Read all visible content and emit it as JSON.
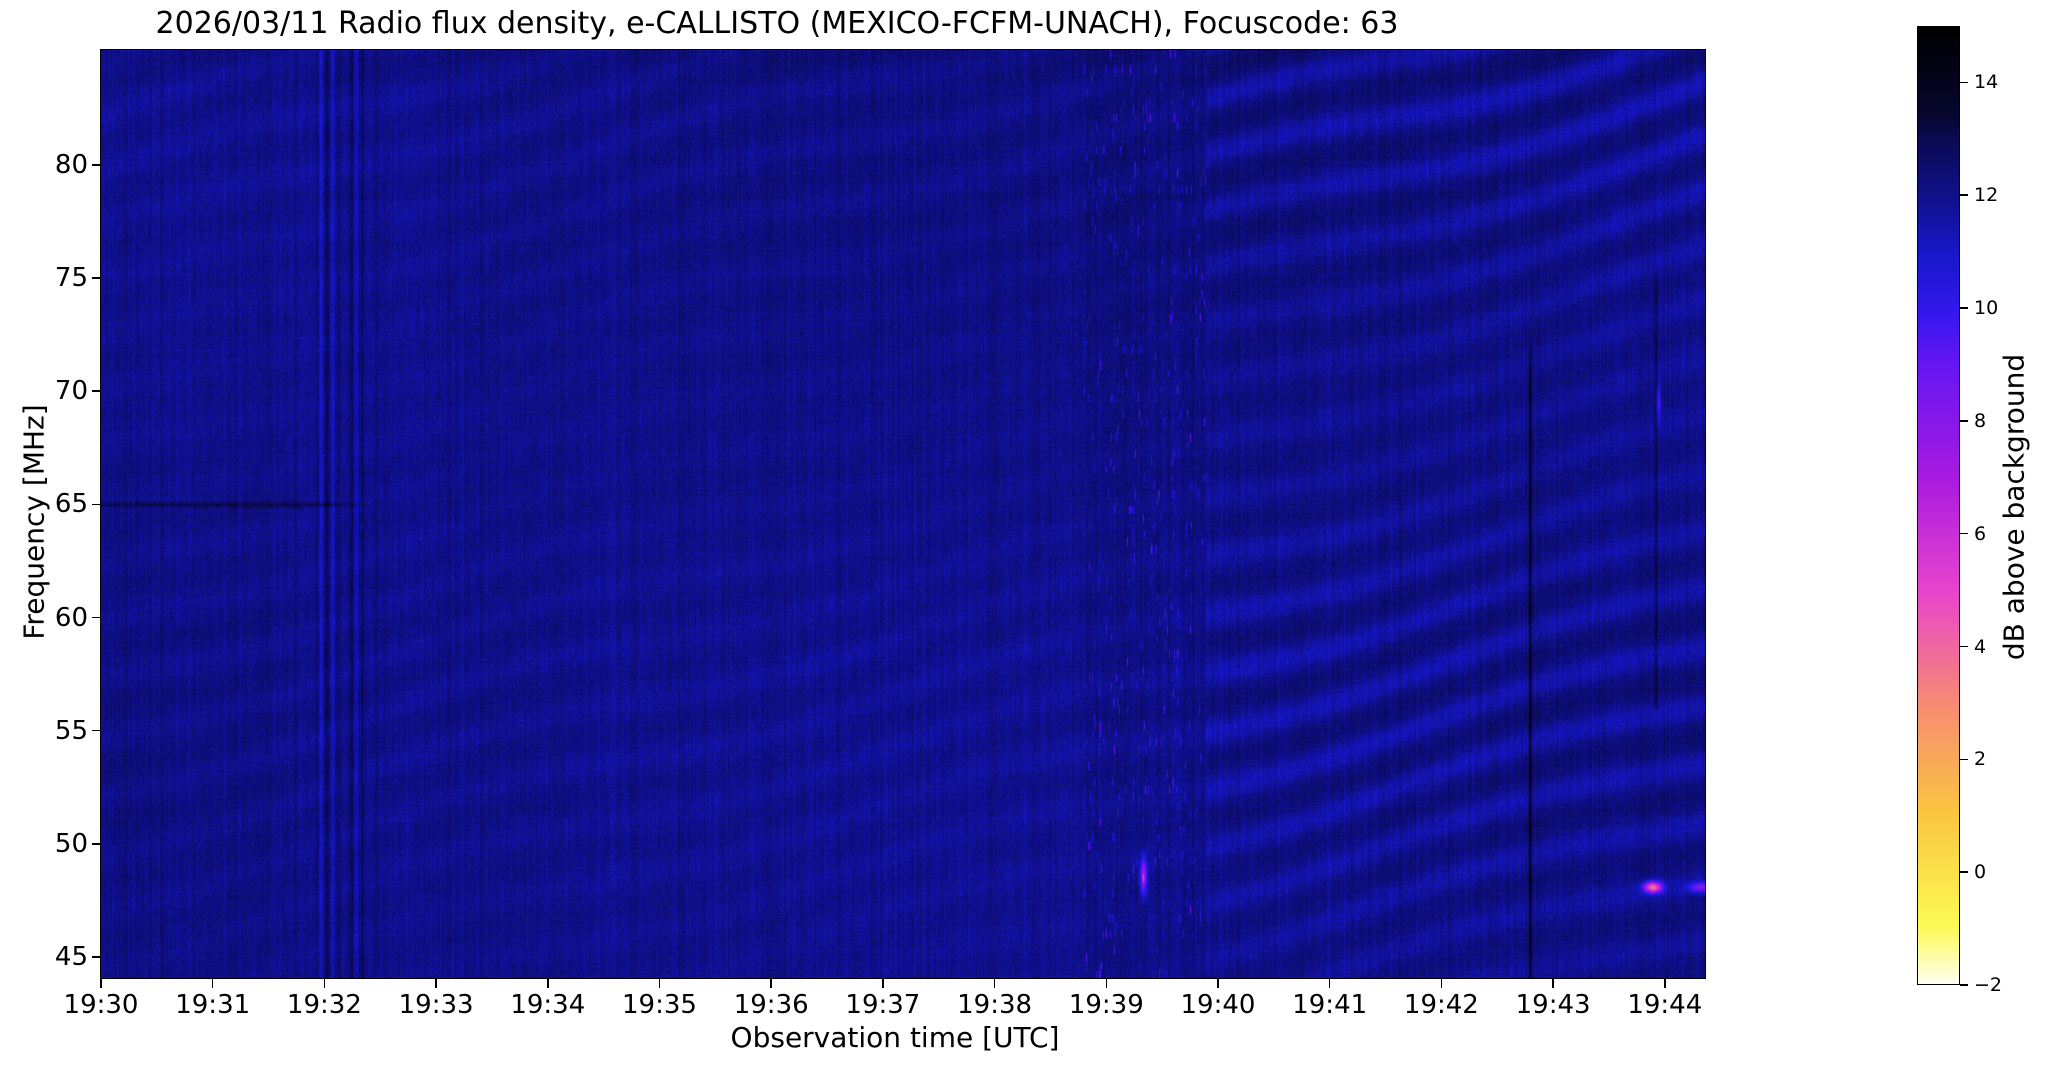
{
  "chart_data": {
    "type": "heatmap",
    "title": "2026/03/11  Radio flux density, e-CALLISTO (MEXICO-FCFM-UNACH), Focuscode: 63",
    "xlabel": "Observation time [UTC]",
    "ylabel": "Frequency [MHz]",
    "colorbar_label": "dB above background",
    "x_axis": {
      "min_minute": 0.0,
      "max_minute": 14.36,
      "start_time": "19:30",
      "end_time": "19:44:22"
    },
    "y_axis": {
      "min_mhz": 44.07,
      "max_mhz": 85.08
    },
    "x_ticks": [
      "19:30",
      "19:31",
      "19:32",
      "19:33",
      "19:34",
      "19:35",
      "19:36",
      "19:37",
      "19:38",
      "19:39",
      "19:40",
      "19:41",
      "19:42",
      "19:43",
      "19:44"
    ],
    "y_ticks": [
      45,
      50,
      55,
      60,
      65,
      70,
      75,
      80
    ],
    "colorbar_ticks": [
      {
        "value": -2,
        "label": "−2"
      },
      {
        "value": 0,
        "label": "0"
      },
      {
        "value": 2,
        "label": "2"
      },
      {
        "value": 4,
        "label": "4"
      },
      {
        "value": 6,
        "label": "6"
      },
      {
        "value": 8,
        "label": "8"
      },
      {
        "value": 10,
        "label": "10"
      },
      {
        "value": 12,
        "label": "12"
      },
      {
        "value": 14,
        "label": "14"
      }
    ],
    "z_range_db": [
      -2,
      15
    ],
    "colormap_name": "gnuplot2-like",
    "colormap_stops": [
      {
        "t": 0.0,
        "color": "#000000"
      },
      {
        "t": 0.09,
        "color": "#06062e"
      },
      {
        "t": 0.118,
        "color": "#0a0a52"
      },
      {
        "t": 0.18,
        "color": "#10108c"
      },
      {
        "t": 0.235,
        "color": "#1717c8"
      },
      {
        "t": 0.3,
        "color": "#3318ee"
      },
      {
        "t": 0.353,
        "color": "#6616f2"
      },
      {
        "t": 0.47,
        "color": "#a81ae0"
      },
      {
        "t": 0.588,
        "color": "#e743cd"
      },
      {
        "t": 0.706,
        "color": "#f78a74"
      },
      {
        "t": 0.82,
        "color": "#fac440"
      },
      {
        "t": 0.94,
        "color": "#fcfa55"
      },
      {
        "t": 1.0,
        "color": "#fffff2"
      }
    ],
    "background_level_db": 1.0,
    "noise_std_db": 0.45,
    "features": [
      {
        "kind": "dark_horizontal_line",
        "freq_mhz": 65.0,
        "t_start_min": 0.0,
        "t_end_min": 2.05,
        "depth_db": -1.1
      },
      {
        "kind": "vertical_interference_band",
        "t_start_min": 1.93,
        "t_end_min": 2.35,
        "stripe_amplitude_db": 0.8
      },
      {
        "kind": "speckle_band",
        "t_start_min": 8.8,
        "t_end_min": 9.9,
        "spike_amplitude_db": 2.8,
        "base_offset_db": -0.15
      },
      {
        "kind": "ripple_pattern",
        "left_amplitude_db": 0.35,
        "right_amplitude_db": 1.0,
        "boundary_t_min": 9.9,
        "vertical_period_mhz": 2.5,
        "description": "diagonal wavy interference fringes, much stronger after 19:40"
      },
      {
        "kind": "dark_vertical_line",
        "t_min": 12.79,
        "freq_top_mhz": 71.0,
        "freq_bottom_mhz": 44.1,
        "depth_db": -2.0
      },
      {
        "kind": "dark_vertical_line",
        "t_min": 13.92,
        "freq_top_mhz": 74.0,
        "freq_bottom_mhz": 56.0,
        "depth_db": -1.1
      },
      {
        "kind": "point_burst",
        "t_min": 13.89,
        "freq_mhz": 48.1,
        "peak_db": 9.0,
        "sigma_t_s": 3.4,
        "sigma_f_mhz": 0.18,
        "description": "bright magenta-pink blob near 19:43.9 / 48 MHz"
      },
      {
        "kind": "point_burst",
        "t_min": 14.32,
        "freq_mhz": 48.1,
        "peak_db": 4.5,
        "sigma_t_s": 4.5,
        "sigma_f_mhz": 0.16
      },
      {
        "kind": "point_burst",
        "t_min": 9.33,
        "freq_mhz": 48.6,
        "peak_db": 6.0,
        "sigma_t_s": 1.3,
        "sigma_f_mhz": 0.55
      },
      {
        "kind": "point_burst",
        "t_min": 13.94,
        "freq_mhz": 69.5,
        "peak_db": 3.5,
        "sigma_t_s": 0.9,
        "sigma_f_mhz": 0.55
      }
    ]
  }
}
